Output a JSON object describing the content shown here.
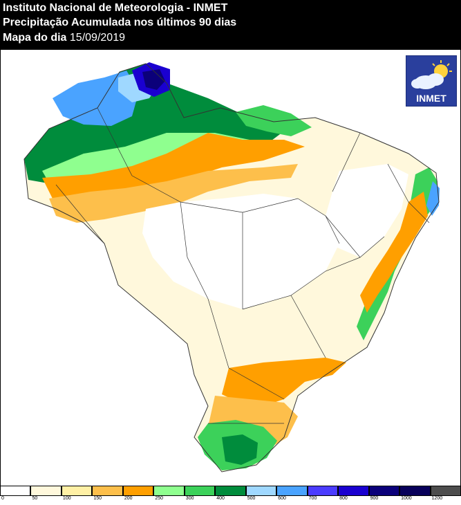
{
  "header": {
    "line1": "Instituto Nacional de Meteorologia - INMET",
    "line2": "Precipitação Acumulada nos últimos 90 dias",
    "line3_label": "Mapa do dia",
    "line3_date": "15/09/2019"
  },
  "logo": {
    "text": "INMET",
    "icon": "sun-cloud-icon"
  },
  "colors": {
    "background": "#ffffff",
    "header_bg": "#000000",
    "border": "#000000",
    "state_lines": "#333333"
  },
  "legend": {
    "ticks": [
      "0",
      "50",
      "100",
      "150",
      "200",
      "250",
      "300",
      "400",
      "500",
      "600",
      "700",
      "800",
      "900",
      "1000",
      "1200"
    ],
    "colors": [
      "#ffffff",
      "#fff8dc",
      "#fff0a5",
      "#fdbf4b",
      "#ff9f00",
      "#8fff8f",
      "#3cd15a",
      "#008c3c",
      "#9fd8ff",
      "#4aa3ff",
      "#4b3cff",
      "#1a00d0",
      "#0b007a",
      "#08005a",
      "#4d4d4d"
    ]
  }
}
